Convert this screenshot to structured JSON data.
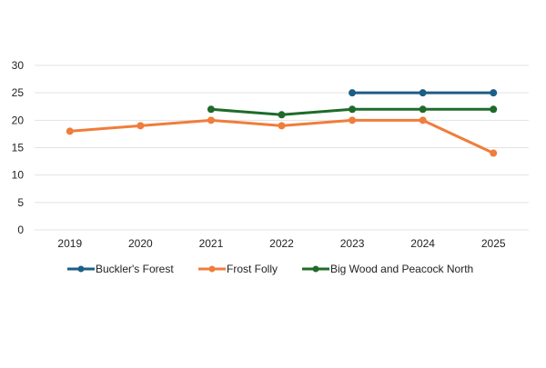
{
  "chart_data": {
    "type": "line",
    "title": "",
    "xlabel": "",
    "ylabel": "",
    "categories": [
      "2019",
      "2020",
      "2021",
      "2022",
      "2023",
      "2024",
      "2025"
    ],
    "ylim": [
      0,
      30
    ],
    "yticks": [
      0,
      5,
      10,
      15,
      20,
      25,
      30
    ],
    "grid": true,
    "legend_position": "bottom",
    "series": [
      {
        "name": "Buckler's Forest",
        "color": "#1d5e85",
        "values": [
          null,
          null,
          null,
          null,
          25,
          25,
          25
        ]
      },
      {
        "name": "Frost Folly",
        "color": "#ef7d3b",
        "values": [
          18,
          19,
          20,
          19,
          20,
          20,
          14
        ]
      },
      {
        "name": "Big Wood and Peacock North",
        "color": "#1e6b2a",
        "values": [
          null,
          null,
          22,
          21,
          22,
          22,
          22
        ]
      }
    ]
  },
  "colors": {
    "gridline": "#e3e3e3",
    "axis_text": "#222222"
  }
}
